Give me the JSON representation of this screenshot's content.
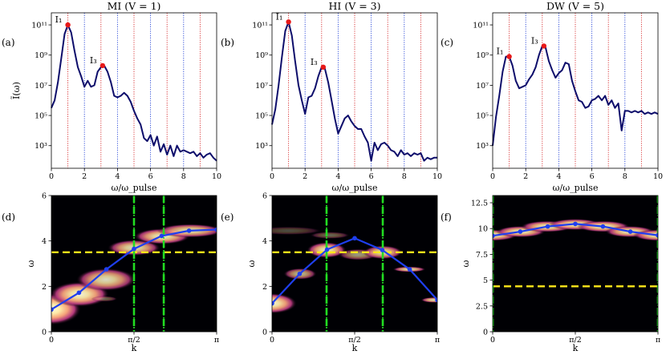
{
  "figure": {
    "panel_labels": [
      "(a)",
      "(b)",
      "(c)",
      "(d)",
      "(e)",
      "(f)"
    ]
  },
  "chart_data": [
    {
      "id": "a",
      "type": "line",
      "title": "MI (V = 1)",
      "xlabel": "ω/ω_pulse",
      "ylabel": "Ĩ(ω)",
      "yscale": "log",
      "xlim": [
        0,
        10
      ],
      "ylim_log10": [
        1.5,
        11.8
      ],
      "xticks": [
        "0",
        "2",
        "4",
        "6",
        "8",
        "10"
      ],
      "yticks": [
        {
          "exp": 3,
          "label": "10³"
        },
        {
          "exp": 5,
          "label": "10⁵"
        },
        {
          "exp": 7,
          "label": "10⁷"
        },
        {
          "exp": 9,
          "label": "10⁹"
        },
        {
          "exp": 11,
          "label": "10¹¹"
        }
      ],
      "vlines": [
        {
          "x": 1,
          "color": "#d62728"
        },
        {
          "x": 2,
          "color": "#1f3fd6"
        },
        {
          "x": 3,
          "color": "#d62728"
        },
        {
          "x": 4,
          "color": "#1f3fd6"
        },
        {
          "x": 5,
          "color": "#d62728"
        },
        {
          "x": 6,
          "color": "#1f3fd6"
        },
        {
          "x": 7,
          "color": "#d62728"
        },
        {
          "x": 8,
          "color": "#1f3fd6"
        },
        {
          "x": 9,
          "color": "#d62728"
        }
      ],
      "series": [
        {
          "color": "#0d0d6b",
          "x": [
            0,
            0.2,
            0.4,
            0.6,
            0.8,
            1.0,
            1.2,
            1.4,
            1.6,
            1.8,
            2.0,
            2.2,
            2.4,
            2.6,
            2.8,
            3.0,
            3.2,
            3.4,
            3.6,
            3.8,
            4.0,
            4.2,
            4.4,
            4.6,
            4.8,
            5.0,
            5.2,
            5.4,
            5.6,
            5.8,
            6.0,
            6.2,
            6.4,
            6.6,
            6.8,
            7.0,
            7.2,
            7.4,
            7.6,
            7.8,
            8.0,
            8.2,
            8.4,
            8.6,
            8.8,
            9.0,
            9.2,
            9.4,
            9.6,
            9.8,
            10.0
          ],
          "log10y": [
            5.5,
            6.0,
            7.2,
            8.8,
            10.4,
            11.0,
            10.5,
            9.3,
            8.2,
            7.6,
            6.9,
            7.3,
            6.9,
            7.0,
            7.9,
            8.2,
            8.3,
            7.9,
            7.2,
            6.3,
            6.2,
            6.3,
            6.5,
            6.3,
            5.9,
            5.3,
            4.8,
            4.4,
            3.5,
            3.3,
            3.7,
            3.0,
            3.6,
            2.6,
            3.1,
            2.4,
            3.0,
            2.3,
            3.0,
            2.6,
            2.7,
            2.6,
            2.5,
            2.6,
            2.3,
            2.5,
            2.2,
            2.4,
            2.5,
            2.2,
            2.0
          ]
        }
      ],
      "markers": [
        {
          "label": "I₁",
          "x": 1.0,
          "log10y": 11.0,
          "color": "#e81818"
        },
        {
          "label": "I₃",
          "x": 3.1,
          "log10y": 8.3,
          "color": "#e81818"
        }
      ]
    },
    {
      "id": "b",
      "type": "line",
      "title": "HI (V = 3)",
      "xlabel": "ω/ω_pulse",
      "ylabel": "",
      "yscale": "log",
      "xlim": [
        0,
        10
      ],
      "ylim_log10": [
        1.5,
        11.8
      ],
      "xticks": [
        "0",
        "2",
        "4",
        "6",
        "8",
        "10"
      ],
      "yticks": [
        {
          "exp": 3,
          "label": "10³"
        },
        {
          "exp": 5,
          "label": "10⁵"
        },
        {
          "exp": 7,
          "label": "10⁷"
        },
        {
          "exp": 9,
          "label": "10⁹"
        },
        {
          "exp": 11,
          "label": "10¹¹"
        }
      ],
      "vlines": [
        {
          "x": 1,
          "color": "#d62728"
        },
        {
          "x": 2,
          "color": "#1f3fd6"
        },
        {
          "x": 3,
          "color": "#d62728"
        },
        {
          "x": 4,
          "color": "#1f3fd6"
        },
        {
          "x": 5,
          "color": "#d62728"
        },
        {
          "x": 6,
          "color": "#1f3fd6"
        },
        {
          "x": 7,
          "color": "#d62728"
        },
        {
          "x": 8,
          "color": "#1f3fd6"
        },
        {
          "x": 9,
          "color": "#d62728"
        }
      ],
      "series": [
        {
          "color": "#0d0d6b",
          "x": [
            0,
            0.2,
            0.4,
            0.6,
            0.8,
            1.0,
            1.2,
            1.4,
            1.6,
            1.8,
            2.0,
            2.2,
            2.4,
            2.6,
            2.8,
            3.0,
            3.2,
            3.4,
            3.6,
            3.8,
            4.0,
            4.2,
            4.4,
            4.6,
            4.8,
            5.0,
            5.2,
            5.4,
            5.6,
            5.8,
            6.0,
            6.2,
            6.4,
            6.6,
            6.8,
            7.0,
            7.2,
            7.4,
            7.6,
            7.8,
            8.0,
            8.2,
            8.4,
            8.6,
            8.8,
            9.0,
            9.2,
            9.4,
            9.6,
            9.8,
            10.0
          ],
          "log10y": [
            4.4,
            5.4,
            7.0,
            8.9,
            10.6,
            11.2,
            10.3,
            8.6,
            7.0,
            6.0,
            5.1,
            6.2,
            6.3,
            6.8,
            7.6,
            8.2,
            8.1,
            7.2,
            6.0,
            4.8,
            3.8,
            4.3,
            4.8,
            5.0,
            4.6,
            4.3,
            4.1,
            4.1,
            3.6,
            3.2,
            2.0,
            3.2,
            2.7,
            3.1,
            3.2,
            3.0,
            2.7,
            2.6,
            2.3,
            2.7,
            2.4,
            2.5,
            2.3,
            2.5,
            2.4,
            2.5,
            2.0,
            2.2,
            2.1,
            2.2,
            2.2
          ]
        }
      ],
      "markers": [
        {
          "label": "I₁",
          "x": 1.0,
          "log10y": 11.2,
          "color": "#e81818"
        },
        {
          "label": "I₃",
          "x": 3.1,
          "log10y": 8.2,
          "color": "#e81818"
        }
      ]
    },
    {
      "id": "c",
      "type": "line",
      "title": "DW (V = 5)",
      "xlabel": "ω/ω_pulse",
      "ylabel": "",
      "yscale": "log",
      "xlim": [
        0,
        10
      ],
      "ylim_log10": [
        1.5,
        11.8
      ],
      "xticks": [
        "0",
        "2",
        "4",
        "6",
        "8",
        "10"
      ],
      "yticks": [
        {
          "exp": 3,
          "label": "10³"
        },
        {
          "exp": 5,
          "label": "10⁵"
        },
        {
          "exp": 7,
          "label": "10⁷"
        },
        {
          "exp": 9,
          "label": "10⁹"
        },
        {
          "exp": 11,
          "label": "10¹¹"
        }
      ],
      "vlines": [
        {
          "x": 1,
          "color": "#d62728"
        },
        {
          "x": 2,
          "color": "#1f3fd6"
        },
        {
          "x": 3,
          "color": "#d62728"
        },
        {
          "x": 4,
          "color": "#1f3fd6"
        },
        {
          "x": 5,
          "color": "#d62728"
        },
        {
          "x": 6,
          "color": "#1f3fd6"
        },
        {
          "x": 7,
          "color": "#d62728"
        },
        {
          "x": 8,
          "color": "#1f3fd6"
        },
        {
          "x": 9,
          "color": "#d62728"
        }
      ],
      "series": [
        {
          "color": "#0d0d6b",
          "x": [
            0,
            0.2,
            0.4,
            0.6,
            0.8,
            1.0,
            1.2,
            1.4,
            1.6,
            1.8,
            2.0,
            2.2,
            2.4,
            2.6,
            2.8,
            3.0,
            3.2,
            3.4,
            3.6,
            3.8,
            4.0,
            4.2,
            4.4,
            4.6,
            4.8,
            5.0,
            5.2,
            5.4,
            5.6,
            5.8,
            6.0,
            6.2,
            6.4,
            6.6,
            6.8,
            7.0,
            7.2,
            7.4,
            7.6,
            7.8,
            8.0,
            8.2,
            8.4,
            8.6,
            8.8,
            9.0,
            9.2,
            9.4,
            9.6,
            9.8,
            10.0
          ],
          "log10y": [
            3.0,
            4.9,
            6.3,
            7.9,
            8.9,
            8.9,
            8.3,
            7.3,
            6.8,
            6.9,
            7.0,
            7.4,
            7.7,
            8.2,
            9.0,
            9.6,
            9.5,
            8.6,
            8.0,
            7.5,
            7.8,
            8.0,
            8.5,
            8.4,
            7.3,
            6.6,
            6.0,
            5.9,
            5.5,
            5.6,
            6.0,
            6.1,
            6.3,
            6.0,
            6.3,
            5.7,
            6.0,
            5.5,
            5.8,
            4.0,
            5.3,
            5.3,
            5.2,
            5.3,
            5.2,
            5.3,
            5.1,
            5.2,
            5.1,
            5.2,
            5.1
          ]
        }
      ],
      "markers": [
        {
          "label": "I₁",
          "x": 1.0,
          "log10y": 8.9,
          "color": "#e81818"
        },
        {
          "label": "I₃",
          "x": 3.1,
          "log10y": 9.6,
          "color": "#e81818"
        }
      ]
    },
    {
      "id": "d",
      "type": "heatmap",
      "xlabel": "k",
      "ylabel": "ω",
      "xlim": [
        0,
        1
      ],
      "ylim": [
        0,
        6
      ],
      "xticks": [
        {
          "v": 0,
          "label": "0"
        },
        {
          "v": 0.5,
          "label": "π/2"
        },
        {
          "v": 1,
          "label": "π"
        }
      ],
      "yticks": [
        {
          "v": 0,
          "label": "0"
        },
        {
          "v": 2,
          "label": "2"
        },
        {
          "v": 4,
          "label": "4"
        },
        {
          "v": 6,
          "label": "6"
        }
      ],
      "hline": 3.5,
      "hline_color": "#ffe81a",
      "vlines": [
        {
          "x": 0.5,
          "style": "dashed"
        },
        {
          "x": 0.68,
          "style": "dashed"
        },
        {
          "x": 0.5,
          "style": "dotted"
        },
        {
          "x": 0.68,
          "style": "dotted"
        }
      ],
      "vline_color": "#22dd22",
      "blobs": [
        {
          "x": 0.0,
          "y": 1.0,
          "w": 0.18,
          "h": 0.7,
          "i": 1.0
        },
        {
          "x": 0.17,
          "y": 1.65,
          "w": 0.18,
          "h": 0.55,
          "i": 0.95
        },
        {
          "x": 0.33,
          "y": 2.3,
          "w": 0.18,
          "h": 0.5,
          "i": 0.85
        },
        {
          "x": 0.5,
          "y": 3.7,
          "w": 0.16,
          "h": 0.35,
          "i": 0.85
        },
        {
          "x": 0.67,
          "y": 4.2,
          "w": 0.17,
          "h": 0.35,
          "i": 0.9
        },
        {
          "x": 0.84,
          "y": 4.45,
          "w": 0.2,
          "h": 0.3,
          "i": 0.85
        },
        {
          "x": 0.32,
          "y": 1.45,
          "w": 0.08,
          "h": 0.12,
          "i": 0.4
        }
      ],
      "series": [
        {
          "color": "#1f3ff0",
          "x": [
            0,
            0.167,
            0.333,
            0.5,
            0.667,
            0.833,
            1.0
          ],
          "y": [
            0.98,
            1.72,
            2.75,
            3.65,
            4.22,
            4.45,
            4.5
          ]
        }
      ]
    },
    {
      "id": "e",
      "type": "heatmap",
      "xlabel": "k",
      "ylabel": "ω",
      "xlim": [
        0,
        1
      ],
      "ylim": [
        0,
        6
      ],
      "xticks": [
        {
          "v": 0,
          "label": "0"
        },
        {
          "v": 0.5,
          "label": "π/2"
        },
        {
          "v": 1,
          "label": "π"
        }
      ],
      "yticks": [
        {
          "v": 0,
          "label": "0"
        },
        {
          "v": 2,
          "label": "2"
        },
        {
          "v": 4,
          "label": "4"
        },
        {
          "v": 6,
          "label": "6"
        }
      ],
      "hline": 3.5,
      "hline_color": "#ffe81a",
      "vlines": [
        {
          "x": 0.33,
          "style": "dashed"
        },
        {
          "x": 0.67,
          "style": "dashed"
        },
        {
          "x": 0.33,
          "style": "dotted"
        },
        {
          "x": 0.67,
          "style": "dotted"
        }
      ],
      "vline_color": "#22dd22",
      "blobs": [
        {
          "x": 0.0,
          "y": 1.25,
          "w": 0.15,
          "h": 0.45,
          "i": 0.95
        },
        {
          "x": 0.17,
          "y": 2.55,
          "w": 0.1,
          "h": 0.25,
          "i": 0.7
        },
        {
          "x": 0.33,
          "y": 3.6,
          "w": 0.12,
          "h": 0.35,
          "i": 0.9
        },
        {
          "x": 0.52,
          "y": 3.4,
          "w": 0.12,
          "h": 0.25,
          "i": 0.6
        },
        {
          "x": 0.67,
          "y": 3.5,
          "w": 0.12,
          "h": 0.3,
          "i": 0.85
        },
        {
          "x": 0.83,
          "y": 2.75,
          "w": 0.1,
          "h": 0.12,
          "i": 0.85
        },
        {
          "x": 0.98,
          "y": 1.4,
          "w": 0.08,
          "h": 0.12,
          "i": 0.85
        },
        {
          "x": 0.1,
          "y": 4.45,
          "w": 0.2,
          "h": 0.18,
          "i": 0.3
        },
        {
          "x": 0.35,
          "y": 4.25,
          "w": 0.12,
          "h": 0.15,
          "i": 0.4
        }
      ],
      "series": [
        {
          "color": "#1f3ff0",
          "x": [
            0,
            0.167,
            0.333,
            0.5,
            0.667,
            0.833,
            1.0
          ],
          "y": [
            1.25,
            2.55,
            3.62,
            4.12,
            3.6,
            2.75,
            1.4
          ]
        }
      ]
    },
    {
      "id": "f",
      "type": "heatmap",
      "xlabel": "k",
      "ylabel": "ω",
      "xlim": [
        0,
        1
      ],
      "ylim": [
        0,
        13.2
      ],
      "xticks": [
        {
          "v": 0,
          "label": "0"
        },
        {
          "v": 0.5,
          "label": "π/2"
        },
        {
          "v": 1,
          "label": "π"
        }
      ],
      "yticks": [
        {
          "v": 0,
          "label": "0"
        },
        {
          "v": 2.5,
          "label": "2.5"
        },
        {
          "v": 5,
          "label": "5"
        },
        {
          "v": 7.5,
          "label": "7.5"
        },
        {
          "v": 10,
          "label": "10"
        },
        {
          "v": 12.5,
          "label": "12.5"
        }
      ],
      "hline": 4.4,
      "hline_color": "#ffe81a",
      "vlines": [
        {
          "x": 0.0,
          "style": "dashed"
        },
        {
          "x": 1.0,
          "style": "dashed"
        },
        {
          "x": 0.0,
          "style": "dotted"
        },
        {
          "x": 1.0,
          "style": "dotted"
        }
      ],
      "vline_color": "#22dd22",
      "blobs": [
        {
          "x": 0.0,
          "y": 9.35,
          "w": 0.15,
          "h": 0.55,
          "i": 0.9
        },
        {
          "x": 0.17,
          "y": 9.7,
          "w": 0.15,
          "h": 0.55,
          "i": 0.9
        },
        {
          "x": 0.33,
          "y": 10.2,
          "w": 0.16,
          "h": 0.55,
          "i": 0.9
        },
        {
          "x": 0.5,
          "y": 10.4,
          "w": 0.16,
          "h": 0.55,
          "i": 0.9
        },
        {
          "x": 0.67,
          "y": 10.2,
          "w": 0.16,
          "h": 0.55,
          "i": 0.9
        },
        {
          "x": 0.83,
          "y": 9.7,
          "w": 0.15,
          "h": 0.55,
          "i": 0.9
        },
        {
          "x": 1.0,
          "y": 9.35,
          "w": 0.15,
          "h": 0.55,
          "i": 0.9
        }
      ],
      "series": [
        {
          "color": "#1f3ff0",
          "x": [
            0,
            0.167,
            0.333,
            0.5,
            0.667,
            0.833,
            1.0
          ],
          "y": [
            9.3,
            9.7,
            10.2,
            10.45,
            10.2,
            9.7,
            9.35
          ]
        }
      ]
    }
  ]
}
